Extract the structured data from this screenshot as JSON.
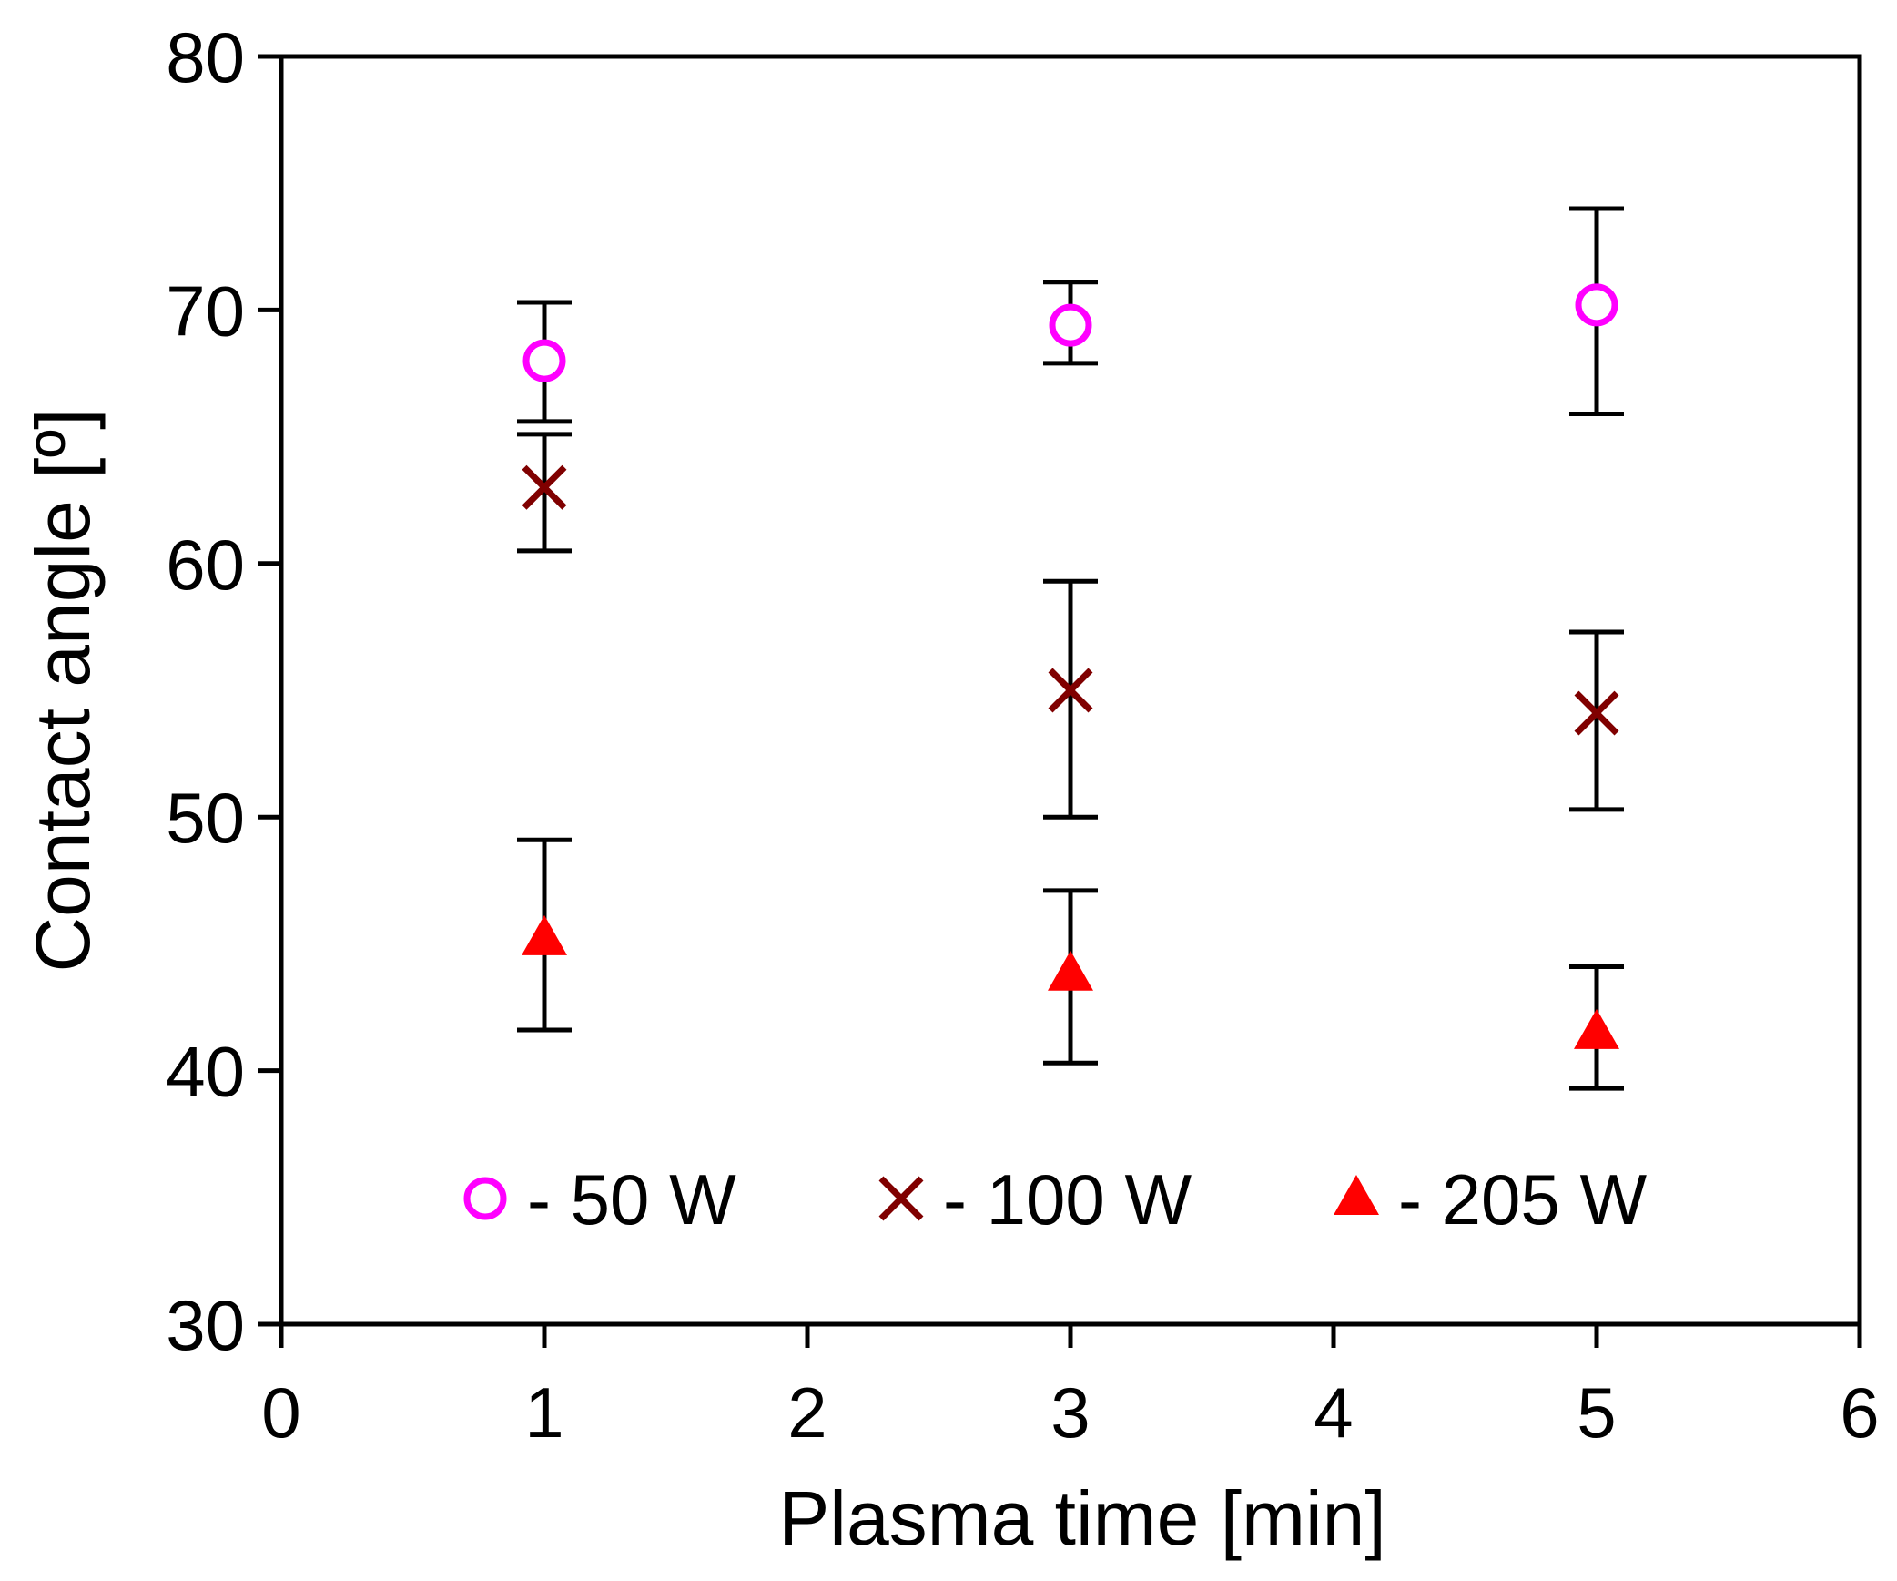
{
  "chart_data": {
    "type": "scatter",
    "title": "",
    "xlabel": "Plasma time [min]",
    "ylabel": "Contact angle [º]",
    "xlim": [
      0,
      6
    ],
    "ylim": [
      30,
      80
    ],
    "xticks": [
      0,
      1,
      2,
      3,
      4,
      5,
      6
    ],
    "yticks": [
      30,
      40,
      50,
      60,
      70,
      80
    ],
    "xtick_labels": [
      "0",
      "1",
      "2",
      "3",
      "4",
      "5",
      "6"
    ],
    "ytick_labels": [
      "30",
      "40",
      "50",
      "60",
      "70",
      "80"
    ],
    "grid": false,
    "legend_position": "bottom-inside",
    "series": [
      {
        "name": "- 50 W",
        "marker": "circle-open",
        "color": "#ff00ff",
        "x": [
          1,
          3,
          5
        ],
        "y": [
          68.0,
          69.4,
          70.2
        ],
        "err_low": [
          65.6,
          67.9,
          65.9
        ],
        "err_high": [
          70.3,
          71.1,
          74.0
        ]
      },
      {
        "name": "- 100 W",
        "marker": "x",
        "color": "#800000",
        "x": [
          1,
          3,
          5
        ],
        "y": [
          63.0,
          55.0,
          54.1
        ],
        "err_low": [
          60.5,
          50.0,
          50.3
        ],
        "err_high": [
          65.1,
          59.3,
          57.3
        ]
      },
      {
        "name": "- 205 W",
        "marker": "triangle-filled",
        "color": "#ff0000",
        "x": [
          1,
          3,
          5
        ],
        "y": [
          45.2,
          43.8,
          41.5
        ],
        "err_low": [
          41.6,
          40.3,
          39.3
        ],
        "err_high": [
          49.1,
          47.1,
          44.1
        ]
      }
    ]
  }
}
